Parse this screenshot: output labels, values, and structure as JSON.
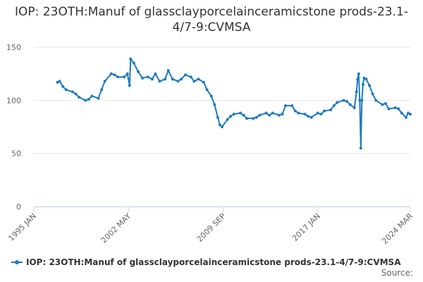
{
  "chart_data": {
    "type": "line",
    "title": "IOP: 23OTH:Manuf of glassclayporcelainceramicstone prods-23.1-4/7-9:CVMSA",
    "source_label": "Source:",
    "x": [
      "1996 NOV",
      "1997 JAN",
      "1997 APR",
      "1997 JUL",
      "1998 JAN",
      "1998 APR",
      "1998 JUL",
      "1999 JAN",
      "1999 APR",
      "1999 JUL",
      "2000 JAN",
      "2000 APR",
      "2000 JUL",
      "2001 JAN",
      "2001 APR",
      "2001 JUL",
      "2002 JAN",
      "2002 APR",
      "2002 JUN",
      "2002 JUL",
      "2002 OCT",
      "2003 FEB",
      "2003 JUN",
      "2003 NOV",
      "2004 MAR",
      "2004 JUN",
      "2004 OCT",
      "2005 MAR",
      "2005 JUN",
      "2005 OCT",
      "2006 MAR",
      "2006 JUN",
      "2006 OCT",
      "2007 MAR",
      "2007 JUN",
      "2007 OCT",
      "2008 MAR",
      "2008 JUN",
      "2008 OCT",
      "2009 JAN",
      "2009 APR",
      "2009 JUN",
      "2009 AUG",
      "2010 JAN",
      "2010 APR",
      "2010 JUL",
      "2011 JAN",
      "2011 APR",
      "2011 JUL",
      "2012 JAN",
      "2012 APR",
      "2012 JUL",
      "2013 JAN",
      "2013 APR",
      "2013 JUL",
      "2014 JAN",
      "2014 APR",
      "2014 JUL",
      "2015 JAN",
      "2015 APR",
      "2015 JUL",
      "2016 JAN",
      "2016 APR",
      "2016 JUL",
      "2017 JAN",
      "2017 APR",
      "2017 JUL",
      "2018 JAN",
      "2018 APR",
      "2018 JUL",
      "2019 JAN",
      "2019 APR",
      "2019 JUL",
      "2019 NOV",
      "2020 JAN",
      "2020 FEB",
      "2020 MAR",
      "2020 APR",
      "2020 MAY",
      "2020 JUN",
      "2020 JUL",
      "2020 AUG",
      "2020 OCT",
      "2021 JAN",
      "2021 APR",
      "2021 JUL",
      "2022 JAN",
      "2022 APR",
      "2022 JUL",
      "2023 JAN",
      "2023 APR",
      "2023 JUL",
      "2023 NOV",
      "2024 JAN",
      "2024 MAR"
    ],
    "series": [
      {
        "name": "IOP: 23OTH:Manuf of glassclayporcelainceramicstone prods-23.1-4/7-9:CVMSA",
        "color": "#1f7bbf",
        "values": [
          117,
          118,
          113,
          110,
          108,
          106,
          103,
          100,
          101,
          104,
          102,
          110,
          118,
          125,
          124,
          122,
          122,
          125,
          114,
          139,
          135,
          127,
          121,
          122,
          120,
          125,
          118,
          120,
          128,
          120,
          118,
          120,
          124,
          122,
          118,
          120,
          117,
          110,
          104,
          96,
          84,
          77,
          75,
          82,
          85,
          87,
          88,
          86,
          83,
          83,
          84,
          86,
          88,
          86,
          88,
          86,
          87,
          95,
          95,
          90,
          88,
          87,
          85,
          84,
          88,
          87,
          90,
          91,
          95,
          98,
          100,
          99,
          96,
          93,
          108,
          120,
          125,
          100,
          55,
          100,
          115,
          121,
          120,
          114,
          106,
          100,
          96,
          97,
          92,
          93,
          92,
          88,
          84,
          88,
          87
        ]
      }
    ],
    "xlim": [
      "1995 JAN",
      "2024 MAR"
    ],
    "xticks": [
      "1995 JAN",
      "2002 MAY",
      "2009 SEP",
      "2017 JAN",
      "2024 MAR"
    ],
    "ylim": [
      0,
      150
    ],
    "yticks": [
      0,
      50,
      100,
      150
    ],
    "grid": true
  }
}
